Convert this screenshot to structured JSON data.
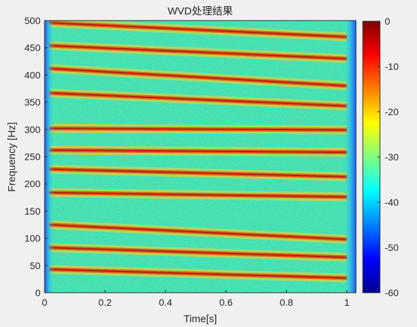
{
  "chart_data": {
    "type": "heatmap",
    "title": "WVD处理结果",
    "xlabel": "Time[s]",
    "ylabel": "Frequency [Hz]",
    "xlim": [
      0,
      1.03
    ],
    "ylim": [
      0,
      500
    ],
    "xticks": [
      0,
      0.2,
      0.4,
      0.6,
      0.8,
      1
    ],
    "xtick_labels": [
      "0",
      "0.2",
      "0.4",
      "0.6",
      "0.8",
      "1"
    ],
    "yticks": [
      0,
      50,
      100,
      150,
      200,
      250,
      300,
      350,
      400,
      450,
      500
    ],
    "ytick_labels": [
      "0",
      "50",
      "100",
      "150",
      "200",
      "250",
      "300",
      "350",
      "400",
      "450",
      "500"
    ],
    "colorbar": {
      "limits": [
        -60,
        0
      ],
      "ticks": [
        0,
        -10,
        -20,
        -30,
        -40,
        -50,
        -60
      ],
      "tick_labels": [
        "0",
        "-10",
        "-20",
        "-30",
        "-40",
        "-50",
        "-60"
      ],
      "colormap": "jet"
    },
    "ridges": [
      {
        "start_hz": 43,
        "end_hz": 27
      },
      {
        "start_hz": 83,
        "end_hz": 65
      },
      {
        "start_hz": 125,
        "end_hz": 98
      },
      {
        "start_hz": 184,
        "end_hz": 176
      },
      {
        "start_hz": 227,
        "end_hz": 213
      },
      {
        "start_hz": 262,
        "end_hz": 258
      },
      {
        "start_hz": 302,
        "end_hz": 299
      },
      {
        "start_hz": 367,
        "end_hz": 343
      },
      {
        "start_hz": 412,
        "end_hz": 380
      },
      {
        "start_hz": 454,
        "end_hz": 430
      },
      {
        "start_hz": 496,
        "end_hz": 470
      }
    ],
    "grid": false
  },
  "colors": {
    "background": "#f0f0f0",
    "axis_bg": "#ffffff",
    "axis_line": "#262626",
    "field": "#3ee0b8"
  }
}
